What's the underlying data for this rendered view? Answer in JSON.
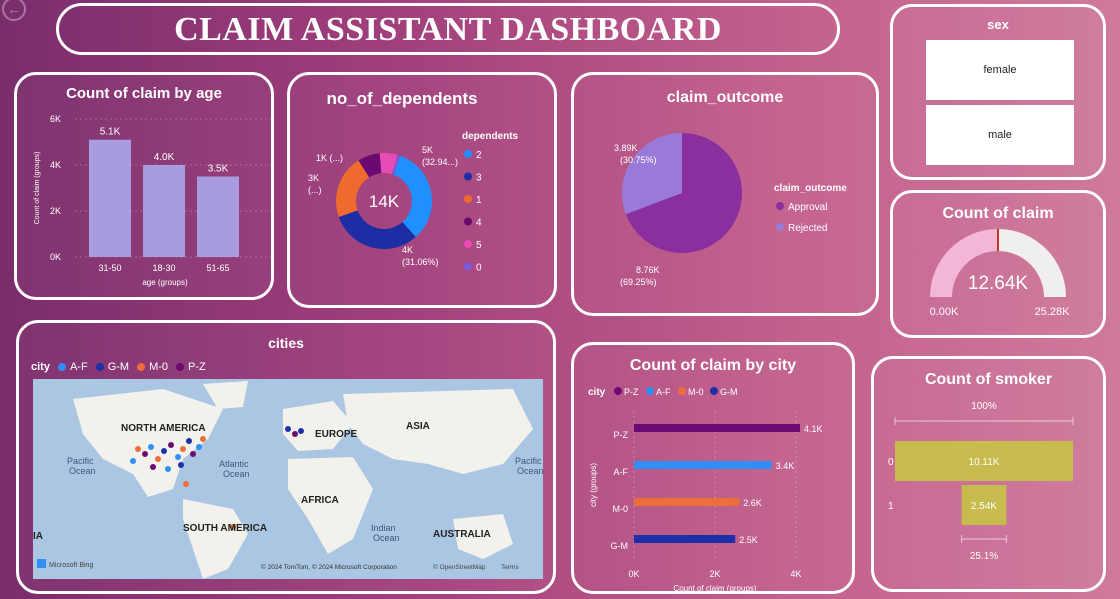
{
  "title": "CLAIM ASSISTANT DASHBOARD",
  "age_chart": {
    "title": "Count of claim by age",
    "ylabel": "Count of claim (groups)",
    "xlabel": "age (groups)",
    "yticks": [
      "6K",
      "4K",
      "2K",
      "0K"
    ]
  },
  "dependents": {
    "title": "no_of_dependents",
    "center": "14K",
    "legend_title": "dependents",
    "labels": {
      "a": "5K",
      "a2": "(32.94...)",
      "b": "4K",
      "b2": "(31.06%)",
      "c": "3K",
      "c2": "(...)",
      "d": "1K (...)"
    }
  },
  "outcome": {
    "title": "claim_outcome",
    "legend_title": "claim_outcome",
    "labels": {
      "rej": "3.89K",
      "rej2": "(30.75%)",
      "app": "8.76K",
      "app2": "(69.25%)"
    }
  },
  "sex": {
    "title": "sex",
    "options": [
      "female",
      "male"
    ]
  },
  "count_claim": {
    "title": "Count of claim",
    "value": "12.64K",
    "min": "0.00K",
    "max": "25.28K",
    "fraction": 0.5
  },
  "cities": {
    "title": "cities",
    "legend_title": "city",
    "legend": [
      {
        "name": "A-F",
        "color": "#2f8ff5"
      },
      {
        "name": "G-M",
        "color": "#1f2fa8"
      },
      {
        "name": "M-0",
        "color": "#ec6e3a"
      },
      {
        "name": "P-Z",
        "color": "#6c0a72"
      }
    ],
    "map_labels": {
      "na": "NORTH AMERICA",
      "eu": "EUROPE",
      "asia": "ASIA",
      "africa": "AFRICA",
      "sa": "SOUTH AMERICA",
      "aus": "AUSTRALIA",
      "atl": "Atlantic",
      "atl2": "Ocean",
      "pac": "Pacific",
      "pac2": "Ocean",
      "ind": "Indian",
      "ind2": "Ocean",
      "pacr": "Pacific",
      "pacr2": "Ocean",
      "ia": "IA"
    },
    "bing": "Microsoft Bing",
    "copyright": "© 2024 TomTom, © 2024 Microsoft Corporation",
    "osm": "© OpenStreetMap",
    "terms": "Terms"
  },
  "city_chart": {
    "title": "Count of claim by city",
    "legend_title": "city",
    "ylabel": "city (groups)",
    "xlabel": "Count of claim (groups)",
    "xticks": [
      "0K",
      "2K",
      "4K"
    ]
  },
  "smoker": {
    "title": "Count of smoker",
    "top_pct": "100%",
    "bottom_pct": "25.1%"
  },
  "chart_data": [
    {
      "type": "bar",
      "title": "Count of claim by age",
      "categories": [
        "31-50",
        "18-30",
        "51-65"
      ],
      "values": [
        5100,
        4000,
        3500
      ],
      "value_labels": [
        "5.1K",
        "4.0K",
        "3.5K"
      ],
      "ylim": [
        0,
        6000
      ],
      "color": "#a99be0"
    },
    {
      "type": "pie",
      "subtype": "donut",
      "title": "no_of_dependents",
      "categories": [
        "2",
        "3",
        "1",
        "4",
        "5",
        "0"
      ],
      "values": [
        32.94,
        31.06,
        21.5,
        7.5,
        6.0,
        1.0
      ],
      "colors": [
        "#1e90ff",
        "#1d2ea5",
        "#ee6a2e",
        "#6a0a70",
        "#e84bb6",
        "#7a5ad6"
      ]
    },
    {
      "type": "pie",
      "title": "claim_outcome",
      "categories": [
        "Approval",
        "Rejected"
      ],
      "values": [
        8760,
        3890
      ],
      "colors": [
        "#8a2f9e",
        "#9a7ad8"
      ]
    },
    {
      "type": "bar",
      "orientation": "horizontal",
      "title": "Count of claim by city",
      "categories": [
        "P-Z",
        "A-F",
        "M-0",
        "G-M"
      ],
      "values": [
        4100,
        3400,
        2600,
        2500
      ],
      "value_labels": [
        "4.1K",
        "3.4K",
        "2.6K",
        "2.5K"
      ],
      "colors": [
        "#6c0a72",
        "#2f8ff5",
        "#ec6e3a",
        "#1f2fa8"
      ],
      "xlim": [
        0,
        4000
      ]
    },
    {
      "type": "bar",
      "subtype": "funnel",
      "title": "Count of smoker",
      "categories": [
        "0",
        "1"
      ],
      "values": [
        10110,
        2540
      ],
      "value_labels": [
        "10.11K",
        "2.54K"
      ],
      "color": "#c6bb4c"
    }
  ]
}
